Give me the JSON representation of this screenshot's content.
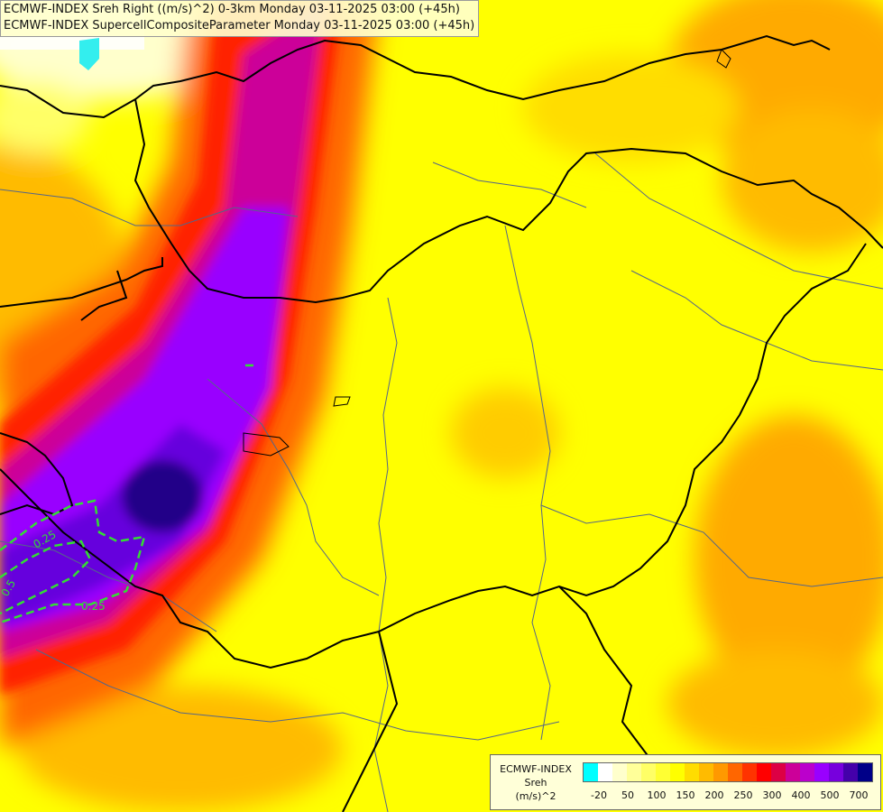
{
  "title_lines": [
    "ECMWF-INDEX Sreh Right ((m/s)^2) 0-3km Monday 03-11-2025 03:00 (+45h)",
    "ECMWF-INDEX SupercellCompositeParameter Monday 03-11-2025 03:00 (+45h)"
  ],
  "contour_labels": [
    "0.25",
    "0.25",
    "0.5"
  ],
  "legend": {
    "line1": "ECMWF-INDEX",
    "line2": "Sreh",
    "line3": "(m/s)^2",
    "colors": [
      "#00ffff",
      "#ffffff",
      "#ffffcc",
      "#ffff99",
      "#ffff66",
      "#ffff33",
      "#ffff00",
      "#ffdd00",
      "#ffbb00",
      "#ff9900",
      "#ff6600",
      "#ff3300",
      "#ff0000",
      "#dd0044",
      "#cc0099",
      "#bb00cc",
      "#9900ff",
      "#7700dd",
      "#4400aa",
      "#000088"
    ],
    "ticks": [
      "-20",
      "50",
      "100",
      "150",
      "200",
      "250",
      "300",
      "400",
      "500",
      "700"
    ]
  },
  "colors": {
    "contour": "#33dd33",
    "border": "#000000",
    "river": "#556688"
  }
}
